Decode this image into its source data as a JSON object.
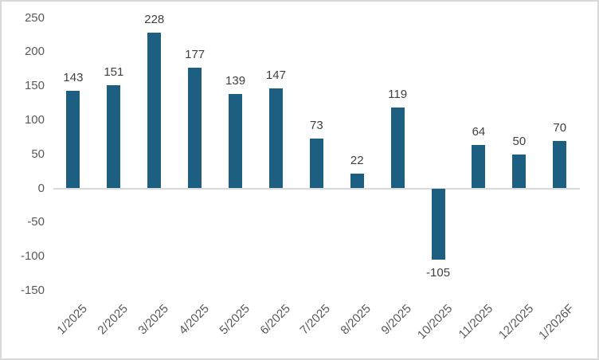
{
  "chart_data": {
    "type": "bar",
    "title": "",
    "xlabel": "",
    "ylabel": "",
    "categories": [
      "1/2025",
      "2/2025",
      "3/2025",
      "4/2025",
      "5/2025",
      "6/2025",
      "7/2025",
      "8/2025",
      "9/2025",
      "10/2025",
      "11/2025",
      "12/2025",
      "1/2026F"
    ],
    "values": [
      143,
      151,
      228,
      177,
      139,
      147,
      73,
      22,
      119,
      -105,
      64,
      50,
      70
    ],
    "data_labels": [
      "143",
      "151",
      "228",
      "177",
      "139",
      "147",
      "73",
      "22",
      "119",
      "-105",
      "64",
      "50",
      "70"
    ],
    "ylim": [
      -150,
      250
    ],
    "yticks": [
      250,
      200,
      150,
      100,
      50,
      0,
      -50,
      -100,
      -150
    ],
    "grid": false,
    "zero_line": true,
    "legend": "none",
    "x_label_rotation_deg": 45,
    "colors": {
      "bar": "#1d5f80",
      "tick_label": "#595959",
      "data_label": "#404040",
      "zero_line": "#d9d9d9",
      "border": "#d9d9d9",
      "background": "#ffffff"
    }
  }
}
